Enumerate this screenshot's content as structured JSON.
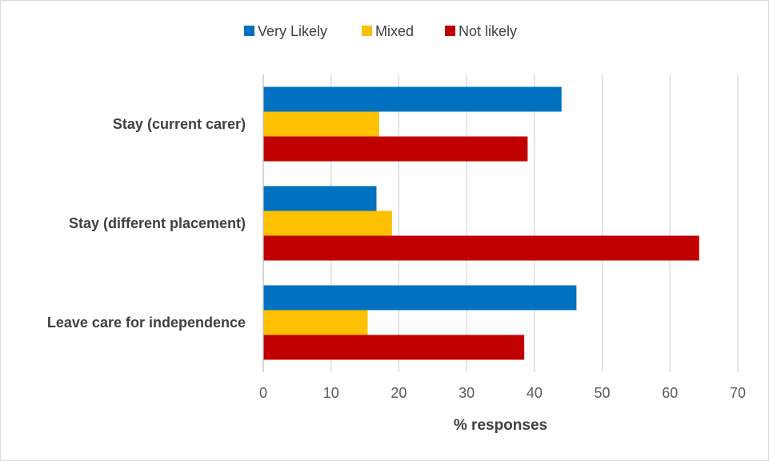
{
  "chart_data": {
    "type": "bar",
    "orientation": "horizontal",
    "categories": [
      "Stay (current carer)",
      "Stay (different placement)",
      "Leave care for independence"
    ],
    "series": [
      {
        "name": "Very Likely",
        "color": "#0070C0",
        "values": [
          44,
          16.7,
          46.2
        ]
      },
      {
        "name": "Mixed",
        "color": "#FFC000",
        "values": [
          17.1,
          19,
          15.4
        ]
      },
      {
        "name": "Not likely",
        "color": "#C00000",
        "values": [
          39,
          64.3,
          38.5
        ]
      }
    ],
    "xlabel": "% responses",
    "xlim": [
      0,
      70
    ],
    "xticks": [
      0,
      10,
      20,
      30,
      40,
      50,
      60,
      70
    ],
    "grid": true,
    "legend_position": "top"
  }
}
